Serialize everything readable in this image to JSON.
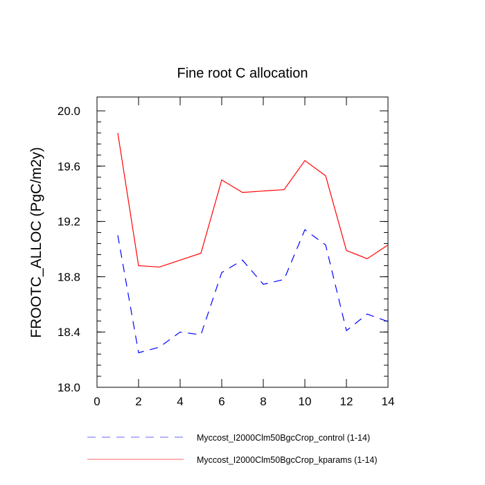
{
  "chart_data": {
    "type": "line",
    "title": "Fine root C allocation",
    "xlabel": "",
    "ylabel": "FROOTC_ALLOC  (PgC/m2y)",
    "xlim": [
      0,
      14
    ],
    "ylim": [
      18.0,
      20.0
    ],
    "x_ticks": [
      0,
      2,
      4,
      6,
      8,
      10,
      12,
      14
    ],
    "x_tick_labels": [
      "0",
      "2",
      "4",
      "6",
      "8",
      "10",
      "12",
      "14"
    ],
    "y_ticks": [
      18.0,
      18.4,
      18.8,
      19.2,
      19.6,
      20.0
    ],
    "y_tick_labels": [
      "18.0",
      "18.4",
      "18.8",
      "19.2",
      "19.6",
      "20.0"
    ],
    "grid": false,
    "legend_position": "bottom",
    "x": [
      1,
      2,
      3,
      4,
      5,
      6,
      7,
      8,
      9,
      10,
      11,
      12,
      13,
      14
    ],
    "series": [
      {
        "name": "Myccost_I2000Clm50BgcCrop_control (1-14)",
        "color": "#0000ff",
        "dash": "dashed",
        "values": [
          19.1,
          18.25,
          18.29,
          18.4,
          18.38,
          18.83,
          18.92,
          18.745,
          18.78,
          19.14,
          19.03,
          18.41,
          18.53,
          18.475
        ]
      },
      {
        "name": "Myccost_I2000Clm50BgcCrop_kparams (1-14)",
        "color": "#ff0000",
        "dash": "solid",
        "values": [
          19.84,
          18.88,
          18.87,
          18.92,
          18.97,
          19.5,
          19.41,
          19.42,
          19.43,
          19.64,
          19.53,
          18.99,
          18.93,
          19.03
        ]
      }
    ]
  }
}
